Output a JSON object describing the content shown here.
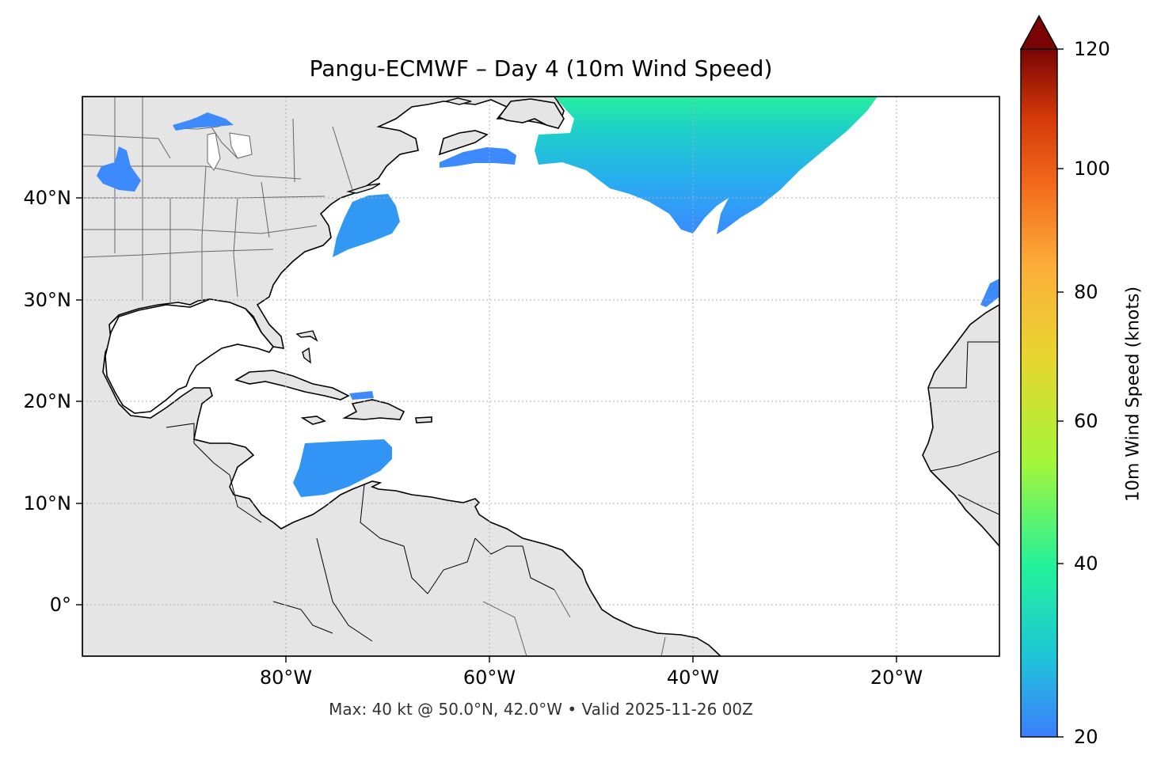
{
  "title": "Pangu-ECMWF – Day 4 (10m Wind Speed)",
  "footer": "Max: 40 kt @ 50.0°N, 42.0°W • Valid 2025-11-26 00Z",
  "colorbar": {
    "label": "10m Wind Speed (knots)",
    "ticks": [
      "20",
      "40",
      "60",
      "80",
      "100",
      "120"
    ],
    "min": 20,
    "max": 120,
    "extend": "max",
    "colormap": [
      "#3d7efe",
      "#1ec6d6",
      "#25f29a",
      "#a5f53a",
      "#e7d630",
      "#fcb03b",
      "#f36b1c",
      "#d3390a",
      "#7a0403"
    ]
  },
  "axes": {
    "lon_labels": [
      "80°W",
      "60°W",
      "40°W",
      "20°W"
    ],
    "lat_labels": [
      "40°N",
      "30°N",
      "20°N",
      "10°N",
      "0°"
    ],
    "gridlines": true
  },
  "map_style": {
    "land_color": "#e5e5e5",
    "ocean_color": "#ffffff",
    "coastline_color": "#000000",
    "border_color": "#666666"
  },
  "wind_regions": [
    {
      "region": "North Atlantic jet",
      "speed_kt": 40
    },
    {
      "region": "Off US Northeast coast",
      "speed_kt": 24
    },
    {
      "region": "Caribbean Sea",
      "speed_kt": 24
    },
    {
      "region": "Great Lakes",
      "speed_kt": 22
    },
    {
      "region": "Off Nova Scotia",
      "speed_kt": 22
    },
    {
      "region": "Off Morocco / Canary",
      "speed_kt": 22
    }
  ]
}
